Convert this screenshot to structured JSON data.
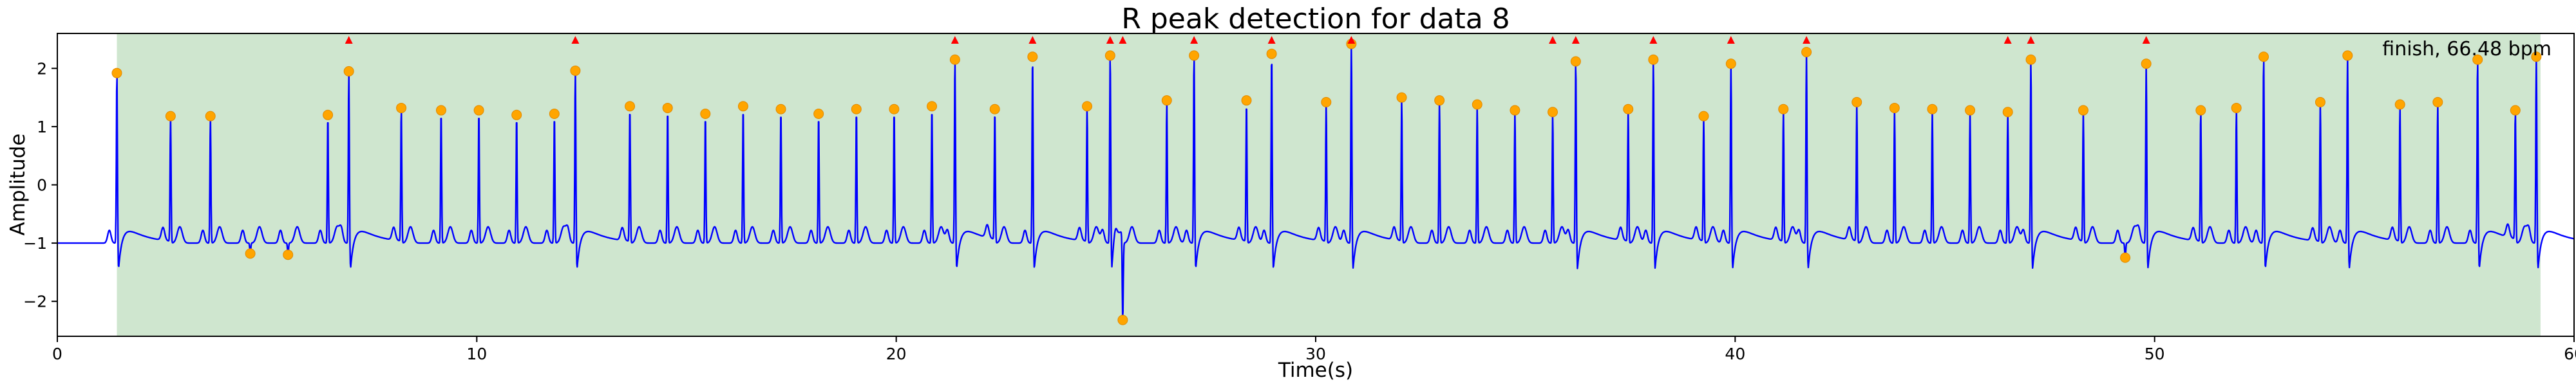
{
  "chart_data": {
    "type": "line",
    "title": "R peak detection for data 8",
    "xlabel": "Time(s)",
    "ylabel": "Amplitude",
    "xlim": [
      0,
      60
    ],
    "ylim": [
      -2.6,
      2.6
    ],
    "x_ticks": [
      0,
      10,
      20,
      30,
      40,
      50,
      60
    ],
    "y_ticks": [
      -2,
      -1,
      0,
      1,
      2
    ],
    "grid": false,
    "annotation": "finish, 66.48 bpm",
    "annotation_placement": "top-right",
    "colors": {
      "signal": "#0000ff",
      "r_peaks": "#ffa500",
      "flags": "#ff0000",
      "valid_region": "#cfe6cf"
    },
    "valid_region": {
      "x_start": 1.42,
      "x_end": 59.2
    },
    "r_peaks": [
      [
        1.42,
        1.92
      ],
      [
        2.7,
        1.18
      ],
      [
        3.65,
        1.18
      ],
      [
        4.6,
        -1.18
      ],
      [
        5.5,
        -1.2
      ],
      [
        6.45,
        1.2
      ],
      [
        6.95,
        1.95
      ],
      [
        8.2,
        1.32
      ],
      [
        9.15,
        1.28
      ],
      [
        10.05,
        1.28
      ],
      [
        10.95,
        1.2
      ],
      [
        11.85,
        1.22
      ],
      [
        12.35,
        1.96
      ],
      [
        13.65,
        1.35
      ],
      [
        14.55,
        1.32
      ],
      [
        15.45,
        1.22
      ],
      [
        16.35,
        1.35
      ],
      [
        17.25,
        1.3
      ],
      [
        18.15,
        1.22
      ],
      [
        19.05,
        1.3
      ],
      [
        19.95,
        1.3
      ],
      [
        20.85,
        1.35
      ],
      [
        21.4,
        2.15
      ],
      [
        22.35,
        1.3
      ],
      [
        23.25,
        2.2
      ],
      [
        24.55,
        1.35
      ],
      [
        25.1,
        2.22
      ],
      [
        25.4,
        -2.32
      ],
      [
        26.45,
        1.45
      ],
      [
        27.1,
        2.22
      ],
      [
        28.35,
        1.45
      ],
      [
        28.95,
        2.25
      ],
      [
        30.25,
        1.42
      ],
      [
        30.85,
        2.42
      ],
      [
        32.05,
        1.5
      ],
      [
        32.95,
        1.45
      ],
      [
        33.85,
        1.38
      ],
      [
        34.75,
        1.28
      ],
      [
        35.65,
        1.25
      ],
      [
        36.2,
        2.12
      ],
      [
        37.45,
        1.3
      ],
      [
        38.05,
        2.15
      ],
      [
        39.25,
        1.18
      ],
      [
        39.9,
        2.08
      ],
      [
        41.15,
        1.3
      ],
      [
        41.7,
        2.28
      ],
      [
        42.9,
        1.42
      ],
      [
        43.8,
        1.32
      ],
      [
        44.7,
        1.3
      ],
      [
        45.6,
        1.28
      ],
      [
        46.5,
        1.25
      ],
      [
        47.05,
        2.15
      ],
      [
        48.3,
        1.28
      ],
      [
        49.3,
        -1.25
      ],
      [
        49.8,
        2.08
      ],
      [
        51.1,
        1.28
      ],
      [
        51.95,
        1.32
      ],
      [
        52.6,
        2.2
      ],
      [
        53.95,
        1.42
      ],
      [
        54.6,
        2.22
      ],
      [
        55.85,
        1.38
      ],
      [
        56.75,
        1.42
      ],
      [
        57.7,
        2.15
      ],
      [
        58.6,
        1.28
      ],
      [
        59.1,
        2.2
      ]
    ],
    "flags_x": [
      6.95,
      12.35,
      21.4,
      23.25,
      25.1,
      25.4,
      27.1,
      28.95,
      30.85,
      35.65,
      36.2,
      38.05,
      39.9,
      41.7,
      46.5,
      47.05,
      49.8
    ]
  }
}
